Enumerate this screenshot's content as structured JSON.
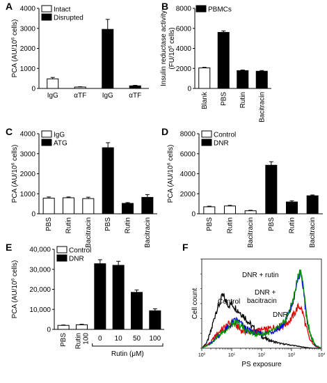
{
  "chart_data": [
    {
      "panel": "A",
      "type": "bar",
      "categories": [
        "IgG",
        "αTF",
        "IgG",
        "αTF"
      ],
      "values": [
        480,
        70,
        2950,
        130
      ],
      "errors": [
        70,
        15,
        500,
        25
      ],
      "fills": [
        "white",
        "white",
        "black",
        "black"
      ],
      "ylabel": "PCA (AU/10⁶ cells)",
      "ylim": [
        0,
        4000
      ],
      "yticks": [
        0,
        1000,
        2000,
        3000,
        4000
      ],
      "legend": [
        {
          "label": "Intact",
          "fill": "white"
        },
        {
          "label": "Disrupted",
          "fill": "black"
        }
      ],
      "legend_placement": "top-left",
      "grid": false
    },
    {
      "panel": "B",
      "type": "bar",
      "categories": [
        "Blank",
        "PBS",
        "Rutin",
        "Bacitracin"
      ],
      "values": [
        2050,
        5600,
        1780,
        1720
      ],
      "errors": [
        60,
        150,
        60,
        70
      ],
      "fills": [
        "white",
        "black",
        "black",
        "black"
      ],
      "ylabel": "Insulin reductase activity (FU/10⁵ cells)",
      "ylim": [
        0,
        8000
      ],
      "yticks": [
        0,
        2000,
        4000,
        6000,
        8000
      ],
      "legend": [
        {
          "label": "PBMCs",
          "fill": "black"
        }
      ],
      "legend_placement": "top-left",
      "grid": false
    },
    {
      "panel": "C",
      "type": "bar",
      "categories": [
        "PBS",
        "Rutin",
        "Bacitracin",
        "PBS",
        "Rutin",
        "Bacitracin"
      ],
      "values": [
        780,
        800,
        760,
        3300,
        520,
        820
      ],
      "errors": [
        60,
        40,
        70,
        250,
        40,
        140
      ],
      "fills": [
        "white",
        "white",
        "white",
        "black",
        "black",
        "black"
      ],
      "ylabel": "PCA (AU/10⁶ cells)",
      "ylim": [
        0,
        4000
      ],
      "yticks": [
        0,
        1000,
        2000,
        3000,
        4000
      ],
      "legend": [
        {
          "label": "IgG",
          "fill": "white"
        },
        {
          "label": "ATG",
          "fill": "black"
        }
      ],
      "legend_placement": "top-left",
      "grid": false
    },
    {
      "panel": "D",
      "type": "bar",
      "categories": [
        "PBS",
        "Rutin",
        "Bacitracin",
        "PBS",
        "Rutin",
        "Bacitracin"
      ],
      "values": [
        700,
        780,
        300,
        4850,
        1180,
        1800
      ],
      "errors": [
        60,
        60,
        50,
        350,
        120,
        80
      ],
      "fills": [
        "white",
        "white",
        "white",
        "black",
        "black",
        "black"
      ],
      "ylabel": "PCA (AU/10⁶ cells)",
      "ylim": [
        0,
        8000
      ],
      "yticks": [
        0,
        2000,
        4000,
        6000,
        8000
      ],
      "legend": [
        {
          "label": "Control",
          "fill": "white"
        },
        {
          "label": "DNR",
          "fill": "black"
        }
      ],
      "legend_placement": "top-left",
      "grid": false
    },
    {
      "panel": "E",
      "type": "bar",
      "categories": [
        "PBS",
        "Rutin 100 μM",
        "0",
        "10",
        "50",
        "100"
      ],
      "values": [
        2000,
        2300,
        32800,
        32000,
        18500,
        9300
      ],
      "errors": [
        200,
        250,
        2000,
        2000,
        1200,
        1000
      ],
      "fills": [
        "white",
        "white",
        "black",
        "black",
        "black",
        "black"
      ],
      "ylabel": "PCA (AU/10⁶ cells)",
      "ylim": [
        0,
        40000
      ],
      "yticks": [
        "0",
        "10,000",
        "20,000",
        "30,000",
        "40,000"
      ],
      "bracket_label": "Rutin (μM)",
      "legend": [
        {
          "label": "Control",
          "fill": "white"
        },
        {
          "label": "DNR",
          "fill": "black"
        }
      ],
      "legend_placement": "top-left",
      "grid": false
    },
    {
      "panel": "F",
      "type": "line",
      "xlabel": "PS exposure",
      "ylabel": "Cell count",
      "xscale": "log",
      "xlim": [
        1,
        10000
      ],
      "xtick_decades": [
        "10⁰",
        "10¹",
        "10²",
        "10³",
        "10⁴"
      ],
      "ylim": [
        0,
        120
      ],
      "series": [
        {
          "name": "Control",
          "color": "#000000",
          "x": [
            1,
            1.5,
            2,
            3,
            4,
            5,
            6,
            8,
            10,
            13,
            17,
            22,
            30,
            45,
            70,
            100,
            150,
            200,
            300,
            450,
            700,
            1000,
            1500,
            2000,
            3000,
            5000,
            10000
          ],
          "y": [
            0,
            8,
            22,
            50,
            60,
            72,
            65,
            58,
            60,
            55,
            50,
            46,
            40,
            30,
            22,
            16,
            12,
            10,
            8,
            6,
            5,
            4,
            3,
            2,
            1,
            0,
            0
          ]
        },
        {
          "name": "DNR",
          "color": "#e00000",
          "x": [
            1,
            2,
            3,
            5,
            8,
            10,
            15,
            20,
            30,
            50,
            80,
            100,
            150,
            200,
            300,
            500,
            700,
            1000,
            1300,
            1600,
            2000,
            2500,
            3000,
            4000,
            6000,
            10000
          ],
          "y": [
            0,
            8,
            18,
            26,
            32,
            34,
            30,
            24,
            22,
            22,
            24,
            24,
            25,
            27,
            28,
            30,
            34,
            40,
            48,
            55,
            56,
            45,
            30,
            12,
            3,
            0
          ]
        },
        {
          "name": "DNR + bacitracin",
          "color": "#0000e0",
          "x": [
            1,
            2,
            3,
            5,
            8,
            10,
            15,
            20,
            30,
            50,
            80,
            100,
            150,
            200,
            300,
            500,
            700,
            1000,
            1300,
            1600,
            2000,
            2500,
            3000,
            4000,
            6000,
            10000
          ],
          "y": [
            0,
            6,
            14,
            22,
            28,
            34,
            38,
            33,
            26,
            22,
            20,
            20,
            20,
            22,
            25,
            30,
            40,
            55,
            72,
            92,
            100,
            80,
            50,
            20,
            4,
            0
          ]
        },
        {
          "name": "DNR + rutin",
          "color": "#009000",
          "x": [
            1,
            2,
            3,
            5,
            8,
            10,
            15,
            20,
            30,
            50,
            80,
            100,
            150,
            200,
            300,
            500,
            700,
            1000,
            1300,
            1600,
            2000,
            2500,
            3000,
            4000,
            6000,
            10000
          ],
          "y": [
            0,
            6,
            14,
            22,
            28,
            32,
            34,
            30,
            24,
            20,
            19,
            19,
            20,
            22,
            25,
            31,
            42,
            58,
            76,
            95,
            106,
            84,
            52,
            22,
            5,
            0
          ]
        }
      ],
      "annotations": [
        "Control",
        "DNR + rutin",
        "DNR +",
        "bacitracin",
        "DNR"
      ]
    }
  ]
}
